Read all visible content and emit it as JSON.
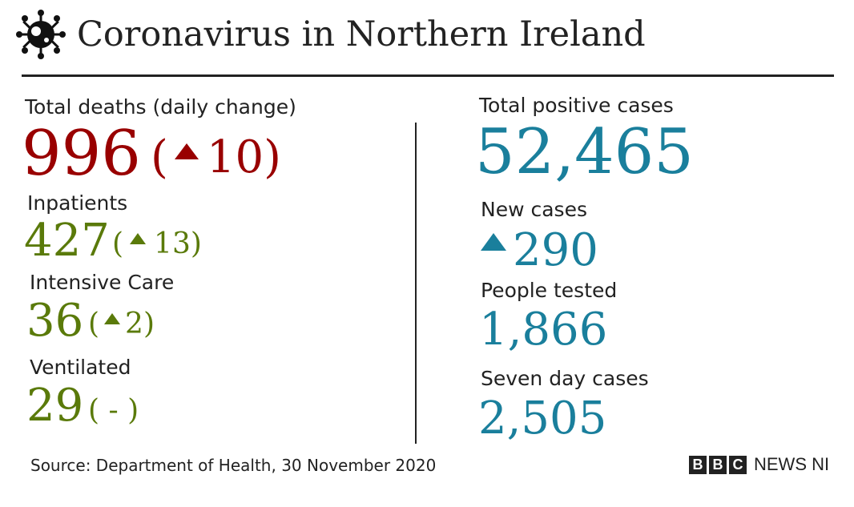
{
  "header": {
    "title": "Coronavirus in Northern Ireland",
    "icon": "virus-icon"
  },
  "left": {
    "deaths": {
      "label": "Total deaths (daily change)",
      "value": "996",
      "open": "(",
      "change": "10",
      "close": ")"
    },
    "inpatients": {
      "label": "Inpatients",
      "value": "427",
      "open": "(",
      "change": "13",
      "close": ")"
    },
    "intensive_care": {
      "label": "Intensive Care",
      "value": "36",
      "open": "(",
      "change": "2",
      "close": ")"
    },
    "ventilated": {
      "label": "Ventilated",
      "value": "29",
      "change": "( - )"
    }
  },
  "right": {
    "total_cases": {
      "label": "Total positive cases",
      "value": "52,465"
    },
    "new_cases": {
      "label": "New cases",
      "change": "290"
    },
    "people_tested": {
      "label": "People tested",
      "value": "1,866"
    },
    "seven_day": {
      "label": "Seven day cases",
      "value": "2,505"
    }
  },
  "footer": {
    "source": "Source: Department of Health, 30 November 2020",
    "logo_letters": [
      "B",
      "B",
      "C"
    ],
    "logo_text": "NEWS NI"
  },
  "colors": {
    "deaths": "#990000",
    "hospital": "#5a7a0a",
    "cases": "#1a7f9c",
    "text": "#222222"
  }
}
